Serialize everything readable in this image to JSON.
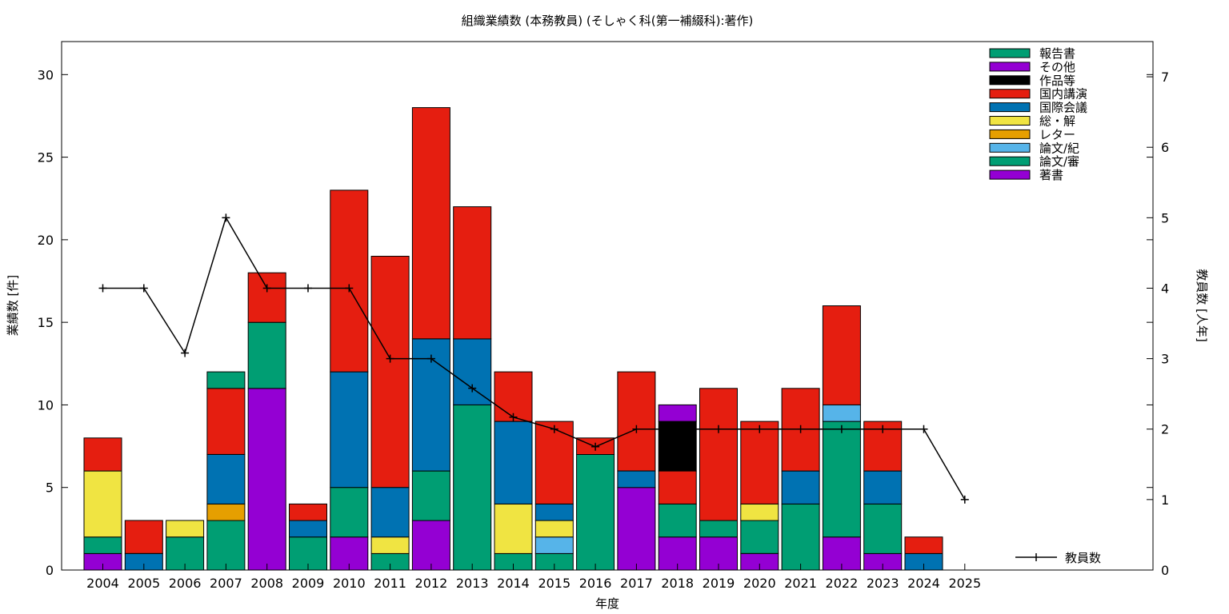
{
  "chart_data": {
    "type": "bar",
    "stacked": true,
    "title": "組織業績数 (本務教員) (そしゃく科(第一補綴科):著作)",
    "xlabel": "年度",
    "ylabel": "業績数 [件]",
    "y2label": "教員数 [人年]",
    "ylim": [
      0,
      32
    ],
    "y2lim": [
      0,
      7.5
    ],
    "yticks": [
      0,
      5,
      10,
      15,
      20,
      25,
      30
    ],
    "y2ticks": [
      0,
      1,
      2,
      3,
      4,
      5,
      6,
      7
    ],
    "grid": false,
    "legend_position": "top-right",
    "categories": [
      "2004",
      "2005",
      "2006",
      "2007",
      "2008",
      "2009",
      "2010",
      "2011",
      "2012",
      "2013",
      "2014",
      "2015",
      "2016",
      "2017",
      "2018",
      "2019",
      "2020",
      "2021",
      "2022",
      "2023",
      "2024",
      "2025"
    ],
    "series": [
      {
        "name": "著書",
        "color": "#9400d3",
        "values": [
          1,
          0,
          0,
          0,
          11,
          0,
          2,
          0,
          3,
          0,
          0,
          0,
          0,
          5,
          2,
          2,
          1,
          0,
          2,
          1,
          0,
          0
        ]
      },
      {
        "name": "論文/審",
        "color": "#009e73",
        "values": [
          1,
          0,
          2,
          3,
          4,
          2,
          3,
          1,
          3,
          10,
          1,
          1,
          7,
          0,
          2,
          1,
          2,
          4,
          7,
          3,
          0,
          0
        ]
      },
      {
        "name": "論文/紀",
        "color": "#56b4e9",
        "values": [
          0,
          0,
          0,
          0,
          0,
          0,
          0,
          0,
          0,
          0,
          0,
          1,
          0,
          0,
          0,
          0,
          0,
          0,
          1,
          0,
          0,
          0
        ]
      },
      {
        "name": "レター",
        "color": "#e69f00",
        "values": [
          0,
          0,
          0,
          1,
          0,
          0,
          0,
          0,
          0,
          0,
          0,
          0,
          0,
          0,
          0,
          0,
          0,
          0,
          0,
          0,
          0,
          0
        ]
      },
      {
        "name": "総・解",
        "color": "#f0e442",
        "values": [
          4,
          0,
          1,
          0,
          0,
          0,
          0,
          1,
          0,
          0,
          3,
          1,
          0,
          0,
          0,
          0,
          1,
          0,
          0,
          0,
          0,
          0
        ]
      },
      {
        "name": "国際会議",
        "color": "#0072b2",
        "values": [
          0,
          1,
          0,
          3,
          0,
          1,
          7,
          3,
          8,
          4,
          5,
          1,
          0,
          1,
          0,
          0,
          0,
          2,
          0,
          2,
          1,
          0
        ]
      },
      {
        "name": "国内講演",
        "color": "#e51e10",
        "values": [
          2,
          2,
          0,
          4,
          3,
          1,
          11,
          14,
          14,
          8,
          3,
          5,
          1,
          6,
          2,
          8,
          5,
          5,
          6,
          3,
          1,
          0
        ]
      },
      {
        "name": "作品等",
        "color": "#000000",
        "values": [
          0,
          0,
          0,
          0,
          0,
          0,
          0,
          0,
          0,
          0,
          0,
          0,
          0,
          0,
          3,
          0,
          0,
          0,
          0,
          0,
          0,
          0
        ]
      },
      {
        "name": "その他",
        "color": "#9400d3",
        "values": [
          0,
          0,
          0,
          0,
          0,
          0,
          0,
          0,
          0,
          0,
          0,
          0,
          0,
          0,
          1,
          0,
          0,
          0,
          0,
          0,
          0,
          0
        ]
      },
      {
        "name": "報告書",
        "color": "#009e73",
        "values": [
          0,
          0,
          0,
          1,
          0,
          0,
          0,
          0,
          0,
          0,
          0,
          0,
          0,
          0,
          0,
          0,
          0,
          0,
          0,
          0,
          0,
          0
        ]
      }
    ],
    "line_series": {
      "name": "教員数",
      "axis": "y2",
      "color": "#000000",
      "values": [
        4,
        4,
        3.08,
        5,
        4,
        4,
        4,
        3,
        3,
        2.58,
        2.17,
        2,
        1.75,
        2,
        2,
        2,
        2,
        2,
        2,
        2,
        2,
        1
      ]
    }
  }
}
